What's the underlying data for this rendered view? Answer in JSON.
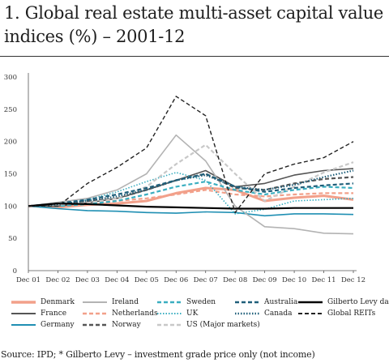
{
  "title": "1. Global real estate multi-asset capital value indices (%) – 2001-12",
  "source": "Source: IPD; * Gilberto Levy – investment grade price only (not income)",
  "chart_data": {
    "type": "line",
    "title": "1. Global real estate multi-asset capital value indices (%) – 2001-12",
    "xlabel": "",
    "ylabel": "",
    "ylim": [
      0,
      300
    ],
    "yticks": [
      0,
      50,
      100,
      150,
      200,
      250,
      300
    ],
    "categories": [
      "Dec 01",
      "Dec 02",
      "Dec 03",
      "Dec 04",
      "Dec 05",
      "Dec 06",
      "Dec 07",
      "Dec 08",
      "Dec 09",
      "Dec 10",
      "Dec 11",
      "Dec 12"
    ],
    "grid": false,
    "legend_position": "bottom",
    "series": [
      {
        "name": "Denmark",
        "color": "#f2a08a",
        "dash": "solid",
        "width": 3,
        "values": [
          100,
          98,
          102,
          104,
          108,
          120,
          128,
          125,
          108,
          113,
          116,
          110
        ]
      },
      {
        "name": "France",
        "color": "#555555",
        "dash": "solid",
        "width": 1.6,
        "values": [
          100,
          100,
          105,
          112,
          125,
          140,
          155,
          130,
          135,
          148,
          155,
          158
        ]
      },
      {
        "name": "Germany",
        "color": "#1f8fb3",
        "dash": "solid",
        "width": 1.6,
        "values": [
          100,
          96,
          93,
          92,
          90,
          89,
          91,
          90,
          85,
          88,
          88,
          87
        ]
      },
      {
        "name": "Ireland",
        "color": "#b3b3b3",
        "dash": "solid",
        "width": 1.6,
        "values": [
          100,
          106,
          112,
          125,
          150,
          210,
          170,
          100,
          68,
          65,
          58,
          57
        ]
      },
      {
        "name": "Netherlands",
        "color": "#f2a08a",
        "dash": "dash",
        "width": 2.2,
        "values": [
          100,
          102,
          106,
          108,
          112,
          118,
          125,
          118,
          115,
          118,
          120,
          120
        ]
      },
      {
        "name": "Norway",
        "color": "#555555",
        "dash": "dash",
        "width": 2.2,
        "values": [
          100,
          103,
          108,
          112,
          125,
          140,
          150,
          128,
          125,
          135,
          142,
          145
        ]
      },
      {
        "name": "Sweden",
        "color": "#3aaec0",
        "dash": "dash",
        "width": 2.2,
        "values": [
          100,
          100,
          103,
          108,
          118,
          130,
          138,
          125,
          118,
          125,
          130,
          128
        ]
      },
      {
        "name": "UK",
        "color": "#3aaec0",
        "dash": "dot",
        "width": 1.6,
        "values": [
          100,
          102,
          110,
          122,
          138,
          152,
          140,
          88,
          95,
          108,
          110,
          112
        ]
      },
      {
        "name": "US (Major markets)",
        "color": "#c8c8c8",
        "dash": "dash",
        "width": 2.2,
        "values": [
          100,
          102,
          105,
          112,
          130,
          165,
          195,
          150,
          108,
          130,
          152,
          168
        ]
      },
      {
        "name": "Australia",
        "color": "#1f5f7a",
        "dash": "dash",
        "width": 2.2,
        "values": [
          100,
          104,
          110,
          118,
          128,
          140,
          150,
          130,
          122,
          128,
          132,
          135
        ]
      },
      {
        "name": "Canada",
        "color": "#1f5f7a",
        "dash": "dot",
        "width": 2.2,
        "values": [
          100,
          103,
          108,
          115,
          125,
          140,
          148,
          130,
          125,
          133,
          145,
          155
        ]
      },
      {
        "name": "Gilberto Levy data*",
        "color": "#000000",
        "dash": "solid",
        "width": 2.2,
        "values": [
          100,
          104,
          103,
          101,
          99,
          98,
          97,
          96,
          96,
          97,
          97,
          97
        ]
      },
      {
        "name": "Global REITs",
        "color": "#222222",
        "dash": "dash",
        "width": 1.4,
        "values": [
          100,
          100,
          135,
          160,
          190,
          270,
          240,
          90,
          150,
          165,
          175,
          200
        ]
      }
    ]
  }
}
